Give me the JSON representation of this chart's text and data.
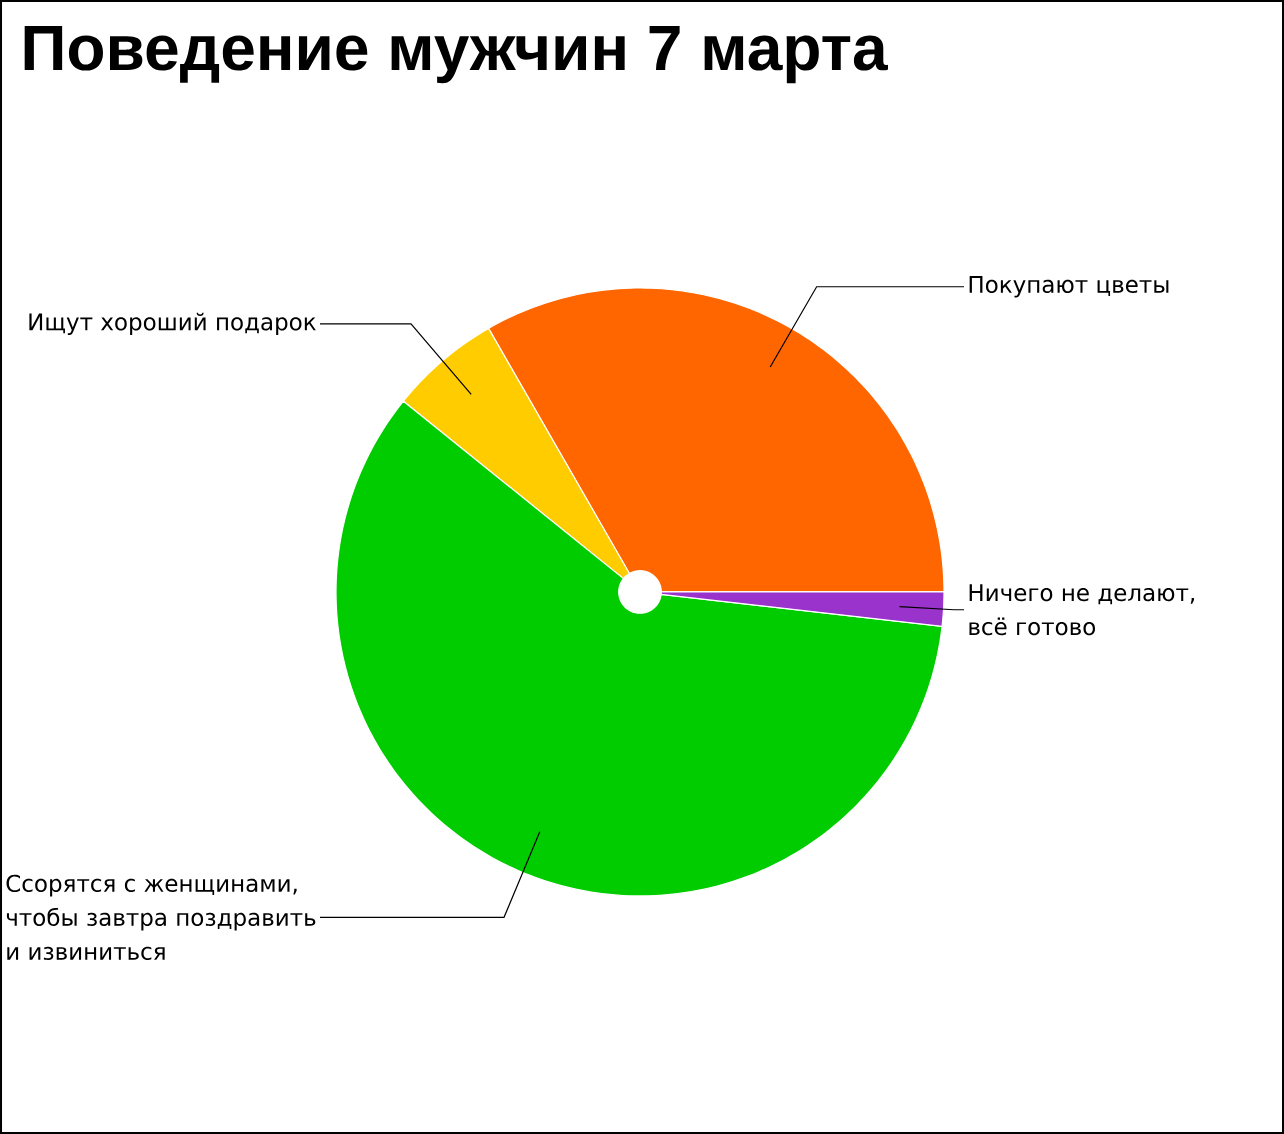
{
  "chart_data": {
    "type": "pie",
    "title": "Поведение мужчин 7 марта",
    "categories": [
      "Покупают цветы",
      "Ищут хороший подарок",
      "Ссорятся с женщинами, чтобы завтра поздравить и извиниться",
      "Ничего не делают, всё готово"
    ],
    "values": [
      33.3,
      5.9,
      59.0,
      1.8
    ],
    "colors": [
      "#ff6600",
      "#ffcc00",
      "#00cc00",
      "#9933cc"
    ]
  }
}
